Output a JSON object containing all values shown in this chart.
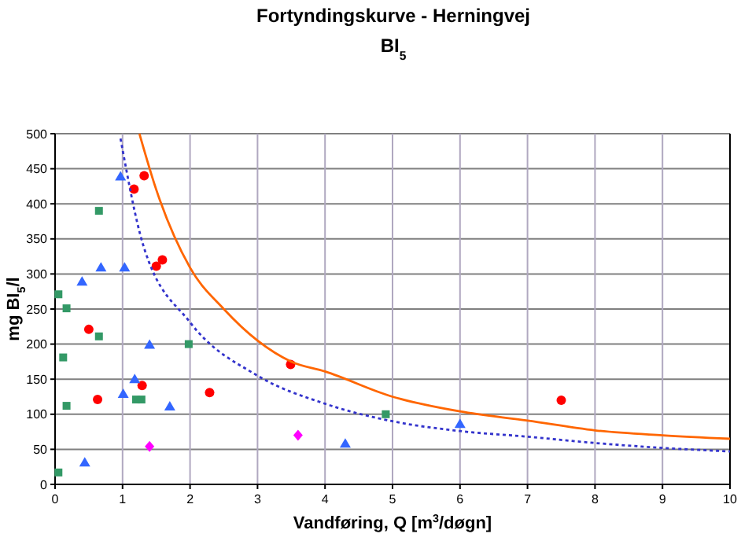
{
  "chart_data": {
    "type": "scatter",
    "title": "Fortyndingskurve - Herningvej",
    "subtitle": "BI$_{5}$",
    "xlabel": "Vandføring, Q [m$^{3}$/døgn]",
    "ylabel": "mg BI$_{5}$/l",
    "xlim": [
      0,
      10
    ],
    "xticks": [
      0,
      1,
      2,
      3,
      4,
      5,
      6,
      7,
      8,
      9,
      10
    ],
    "ylim": [
      0,
      500
    ],
    "yticks": [
      0,
      50,
      100,
      150,
      200,
      250,
      300,
      350,
      400,
      450,
      500
    ],
    "grid": true,
    "series": [
      {
        "color": "#ff0000",
        "marker": "circle",
        "x": [
          1.17,
          1.32,
          1.5,
          1.59,
          0.5,
          0.63,
          1.29,
          2.29,
          3.49,
          7.5
        ],
        "values": [
          421,
          440,
          311,
          320,
          221,
          121,
          141,
          131,
          171,
          120
        ]
      },
      {
        "color": "#3366ff",
        "marker": "triangle",
        "x": [
          0.97,
          0.68,
          1.03,
          0.4,
          1.4,
          1.18,
          1.01,
          1.7,
          0.44,
          4.3,
          6.0
        ],
        "values": [
          439,
          309,
          309,
          289,
          199,
          150,
          129,
          111,
          31,
          58,
          86
        ]
      },
      {
        "color": "#339966",
        "marker": "square",
        "x": [
          0.65,
          0.05,
          0.17,
          0.65,
          0.12,
          0.17,
          1.98,
          1.2,
          1.28,
          0.05,
          4.9
        ],
        "values": [
          390,
          271,
          251,
          211,
          181,
          112,
          200,
          121,
          121,
          17,
          100
        ]
      },
      {
        "color": "#ff00ff",
        "marker": "diamond",
        "x": [
          1.4,
          3.6
        ],
        "values": [
          54,
          70
        ]
      },
      {
        "type": "line",
        "color": "#ff6600",
        "marker": "none",
        "line_style": "solid",
        "x": [
          1.25,
          1.5,
          2,
          2.5,
          3,
          3.5,
          4,
          5,
          6,
          7,
          8,
          9,
          10
        ],
        "values": [
          500,
          420,
          309,
          250,
          205,
          175,
          161,
          125,
          104,
          91,
          77,
          70,
          65
        ]
      },
      {
        "type": "line",
        "color": "#3333cc",
        "marker": "none",
        "line_style": "dotted",
        "x": [
          0.97,
          1.3,
          2,
          3,
          4,
          5,
          6,
          7,
          8,
          9,
          10
        ],
        "values": [
          493,
          343,
          231,
          155,
          115,
          90,
          76,
          68,
          59,
          52,
          47
        ]
      }
    ]
  }
}
